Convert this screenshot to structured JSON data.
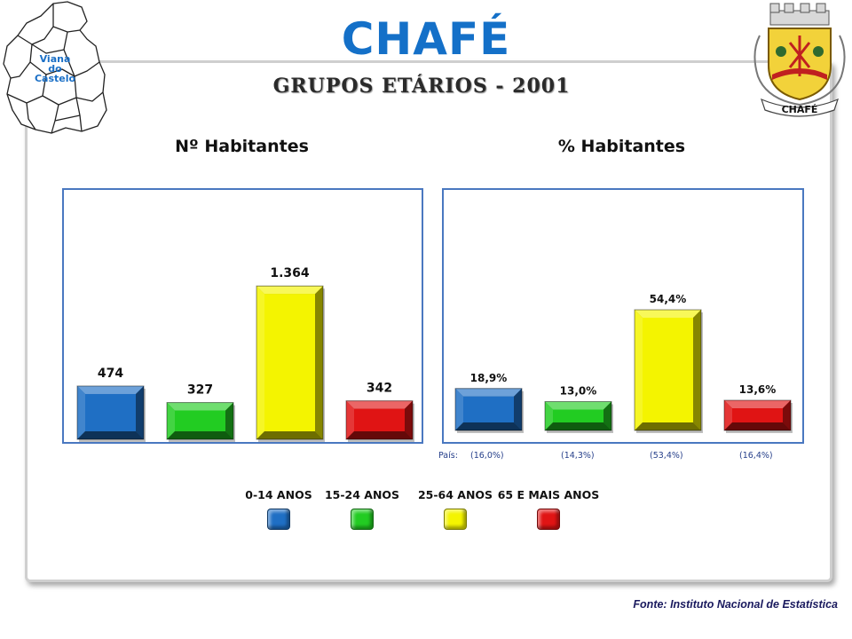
{
  "header": {
    "brand": "CHAFÉ",
    "subtitle": "GRUPOS ETÁRIOS - 2001",
    "map_label_lines": [
      "Viana",
      "do",
      "Castelo"
    ],
    "crest_label": "CHAFÉ",
    "map_icon": "district-map-icon",
    "crest_icon": "coat-of-arms-icon"
  },
  "chart_data": [
    {
      "type": "bar",
      "title": "Nº Habitantes",
      "categories": [
        "0-14 ANOS",
        "15-24 ANOS",
        "25-64 ANOS",
        "65 E MAIS ANOS"
      ],
      "values": [
        474,
        327,
        1364,
        342
      ],
      "value_labels": [
        "474",
        "327",
        "1.364",
        "342"
      ],
      "colors": [
        "#1f6fc4",
        "#22cc22",
        "#f4f400",
        "#e01414"
      ],
      "ylim": [
        0,
        1500
      ]
    },
    {
      "type": "bar",
      "title": "% Habitantes",
      "categories": [
        "0-14 ANOS",
        "15-24 ANOS",
        "25-64 ANOS",
        "65 E MAIS ANOS"
      ],
      "values": [
        18.9,
        13.0,
        54.4,
        13.6
      ],
      "value_labels": [
        "18,9%",
        "13,0%",
        "54,4%",
        "13,6%"
      ],
      "colors": [
        "#1f6fc4",
        "#22cc22",
        "#f4f400",
        "#e01414"
      ],
      "ylim": [
        0,
        60
      ],
      "country_label": "País:",
      "country_values": [
        "(16,0%)",
        "(14,3%)",
        "(53,4%)",
        "(16,4%)"
      ]
    }
  ],
  "legend": {
    "items": [
      {
        "label": "0-14 ANOS",
        "color": "#1f6fc4"
      },
      {
        "label": "15-24 ANOS",
        "color": "#22cc22"
      },
      {
        "label": "25-64 ANOS",
        "color": "#f4f400"
      },
      {
        "label": "65 E MAIS ANOS",
        "color": "#e01414"
      }
    ]
  },
  "footer": {
    "source": "Fonte: Instituto Nacional de Estatística"
  }
}
